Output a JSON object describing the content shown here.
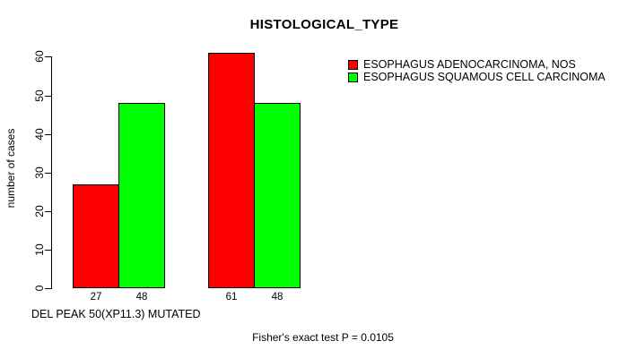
{
  "chart_data": {
    "type": "bar",
    "title": "HISTOLOGICAL_TYPE",
    "ylabel": "number of cases",
    "xlabel": "DEL PEAK 50(XP11.3) MUTATED",
    "annotation": "Fisher's exact test P = 0.0105",
    "ylim": [
      0,
      60
    ],
    "y_ticks": [
      0,
      10,
      20,
      30,
      40,
      50,
      60
    ],
    "categories": [
      "",
      ""
    ],
    "series": [
      {
        "name": "ESOPHAGUS ADENOCARCINOMA, NOS",
        "color": "#FF0000",
        "values": [
          27,
          61
        ]
      },
      {
        "name": "ESOPHAGUS SQUAMOUS CELL CARCINOMA",
        "color": "#00FF00",
        "values": [
          48,
          48
        ]
      }
    ],
    "bar_value_labels": [
      "27",
      "48",
      "61",
      "48"
    ],
    "legend_position": "right",
    "grid": false,
    "background_color": "#FFFFFF",
    "axis_color": "#000000",
    "text_color": "#000000"
  }
}
